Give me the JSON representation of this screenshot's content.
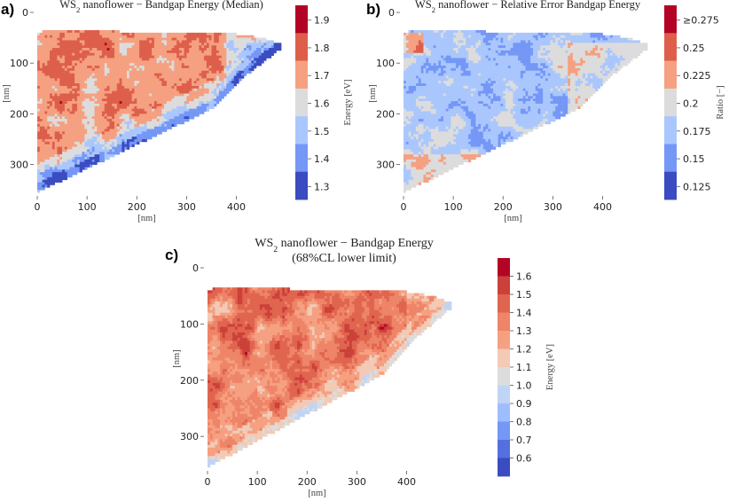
{
  "chart_data": [
    {
      "panel_label": "a)",
      "type": "heatmap",
      "title_prefix": "WS",
      "title_sub": "2",
      "title_rest": " nanoflower − Bandgap Energy (Median)",
      "xlabel": "[nm]",
      "ylabel": "[nm]",
      "xlim": [
        0,
        490
      ],
      "ylim": [
        0,
        355
      ],
      "xticks": [
        0,
        100,
        200,
        300,
        400
      ],
      "yticks": [
        0,
        100,
        200,
        300
      ],
      "colorbar": {
        "label": "Energy [eV]",
        "tick_labels": [
          "1.9",
          "1.8",
          "1.7",
          "1.6",
          "1.5",
          "1.4",
          "1.3"
        ],
        "colors": [
          "#b40426",
          "#dd5f4b",
          "#f5a081",
          "#dddcdc",
          "#aac7fd",
          "#7597f6",
          "#3b4cc0"
        ]
      }
    },
    {
      "panel_label": "b)",
      "type": "heatmap",
      "title_prefix": "WS",
      "title_sub": "2",
      "title_rest": " nanoflower − Relative Error Bandgap Energy",
      "xlabel": "[nm]",
      "ylabel": "[nm]",
      "xlim": [
        0,
        490
      ],
      "ylim": [
        0,
        355
      ],
      "xticks": [
        0,
        100,
        200,
        300,
        400
      ],
      "yticks": [
        0,
        100,
        200,
        300
      ],
      "colorbar": {
        "label": "Ratio [−]",
        "tick_labels": [
          "≥0.275",
          "0.25",
          "0.225",
          "0.2",
          "0.175",
          "0.15",
          "0.125"
        ],
        "colors": [
          "#b40426",
          "#dd5f4b",
          "#f5a081",
          "#dddcdc",
          "#aac7fd",
          "#7597f6",
          "#3b4cc0"
        ]
      }
    },
    {
      "panel_label": "c)",
      "type": "heatmap",
      "title_prefix": "WS",
      "title_sub": "2",
      "title_rest": " nanoflower − Bandgap Energy",
      "title_line2": "(68%CL lower limit)",
      "xlabel": "[nm]",
      "ylabel": "[nm]",
      "xlim": [
        0,
        490
      ],
      "ylim": [
        0,
        355
      ],
      "xticks": [
        0,
        100,
        200,
        300,
        400
      ],
      "yticks": [
        0,
        100,
        200,
        300
      ],
      "colorbar": {
        "label": "Energy [eV]",
        "tick_labels": [
          "1.6",
          "1.5",
          "1.4",
          "1.3",
          "1.2",
          "1.1",
          "1.0",
          "0.9",
          "0.8",
          "0.7",
          "0.6"
        ],
        "colors": [
          "#b40426",
          "#cc403a",
          "#e0654f",
          "#ee8468",
          "#f5a081",
          "#f2cab5",
          "#dddcdc",
          "#c0d4f5",
          "#9dbdff",
          "#7597f6",
          "#5470de",
          "#3b4cc0"
        ]
      }
    }
  ]
}
